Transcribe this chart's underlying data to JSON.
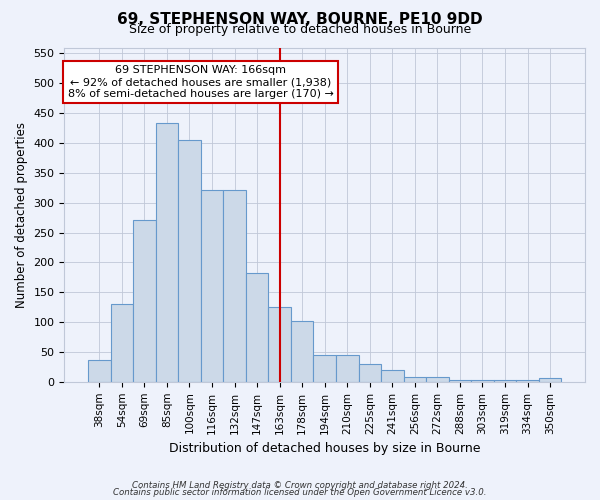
{
  "title": "69, STEPHENSON WAY, BOURNE, PE10 9DD",
  "subtitle": "Size of property relative to detached houses in Bourne",
  "xlabel": "Distribution of detached houses by size in Bourne",
  "ylabel": "Number of detached properties",
  "categories": [
    "38sqm",
    "54sqm",
    "69sqm",
    "85sqm",
    "100sqm",
    "116sqm",
    "132sqm",
    "147sqm",
    "163sqm",
    "178sqm",
    "194sqm",
    "210sqm",
    "225sqm",
    "241sqm",
    "256sqm",
    "272sqm",
    "288sqm",
    "303sqm",
    "319sqm",
    "334sqm",
    "350sqm"
  ],
  "values": [
    36,
    131,
    271,
    434,
    405,
    321,
    321,
    182,
    125,
    102,
    45,
    45,
    30,
    20,
    8,
    8,
    3,
    3,
    3,
    3,
    7
  ],
  "bar_color": "#ccd9e8",
  "bar_edge_color": "#6699cc",
  "vline_color": "#cc0000",
  "annotation_text": "69 STEPHENSON WAY: 166sqm\n← 92% of detached houses are smaller (1,938)\n8% of semi-detached houses are larger (170) →",
  "annotation_box_facecolor": "#ffffff",
  "annotation_box_edgecolor": "#cc0000",
  "ylim": [
    0,
    560
  ],
  "yticks": [
    0,
    50,
    100,
    150,
    200,
    250,
    300,
    350,
    400,
    450,
    500,
    550
  ],
  "footer_line1": "Contains HM Land Registry data © Crown copyright and database right 2024.",
  "footer_line2": "Contains public sector information licensed under the Open Government Licence v3.0.",
  "background_color": "#eef2fb",
  "grid_color": "#c0c8d8"
}
